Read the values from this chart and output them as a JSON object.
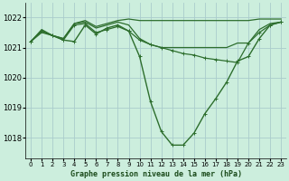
{
  "title": "Graphe pression niveau de la mer (hPa)",
  "background_color": "#cceedd",
  "grid_color": "#aacccc",
  "line_color": "#2d6e2d",
  "x_ticks": [
    0,
    1,
    2,
    3,
    4,
    5,
    6,
    7,
    8,
    9,
    10,
    11,
    12,
    13,
    14,
    15,
    16,
    17,
    18,
    19,
    20,
    21,
    22,
    23
  ],
  "y_ticks": [
    1018,
    1019,
    1020,
    1021,
    1022
  ],
  "ylim": [
    1017.3,
    1022.5
  ],
  "xlim": [
    -0.5,
    23.5
  ],
  "series": [
    {
      "y": [
        1021.2,
        1021.6,
        1021.4,
        1021.3,
        1021.8,
        1021.9,
        1021.7,
        1021.8,
        1021.9,
        1021.95,
        1021.9,
        1021.9,
        1021.9,
        1021.9,
        1021.9,
        1021.9,
        1021.9,
        1021.9,
        1021.9,
        1021.9,
        1021.9,
        1021.95,
        1021.95,
        1021.95
      ],
      "markers": false,
      "lw": 0.9
    },
    {
      "y": [
        1021.2,
        1021.5,
        1021.4,
        1021.3,
        1021.8,
        1021.85,
        1021.65,
        1021.75,
        1021.85,
        1021.75,
        1021.3,
        1021.1,
        1021.0,
        1021.0,
        1021.0,
        1021.0,
        1021.0,
        1021.0,
        1021.0,
        1021.15,
        1021.15,
        1021.6,
        1021.8,
        1021.85
      ],
      "markers": false,
      "lw": 0.9
    },
    {
      "y": [
        1021.2,
        1021.55,
        1021.4,
        1021.25,
        1021.75,
        1021.8,
        1021.5,
        1021.6,
        1021.7,
        1021.55,
        1021.25,
        1021.1,
        1021.0,
        1020.9,
        1020.8,
        1020.75,
        1020.65,
        1020.6,
        1020.55,
        1020.5,
        1021.15,
        1021.5,
        1021.75,
        1021.85
      ],
      "markers": true,
      "lw": 0.9
    },
    {
      "y": [
        1021.2,
        1021.55,
        1021.4,
        1021.25,
        1021.2,
        1021.75,
        1021.45,
        1021.65,
        1021.75,
        1021.55,
        1020.7,
        1019.2,
        1018.2,
        1017.75,
        1017.75,
        1018.15,
        1018.8,
        1019.3,
        1019.85,
        1020.55,
        1020.7,
        1021.3,
        1021.75,
        1021.85
      ],
      "markers": true,
      "lw": 1.0
    }
  ]
}
